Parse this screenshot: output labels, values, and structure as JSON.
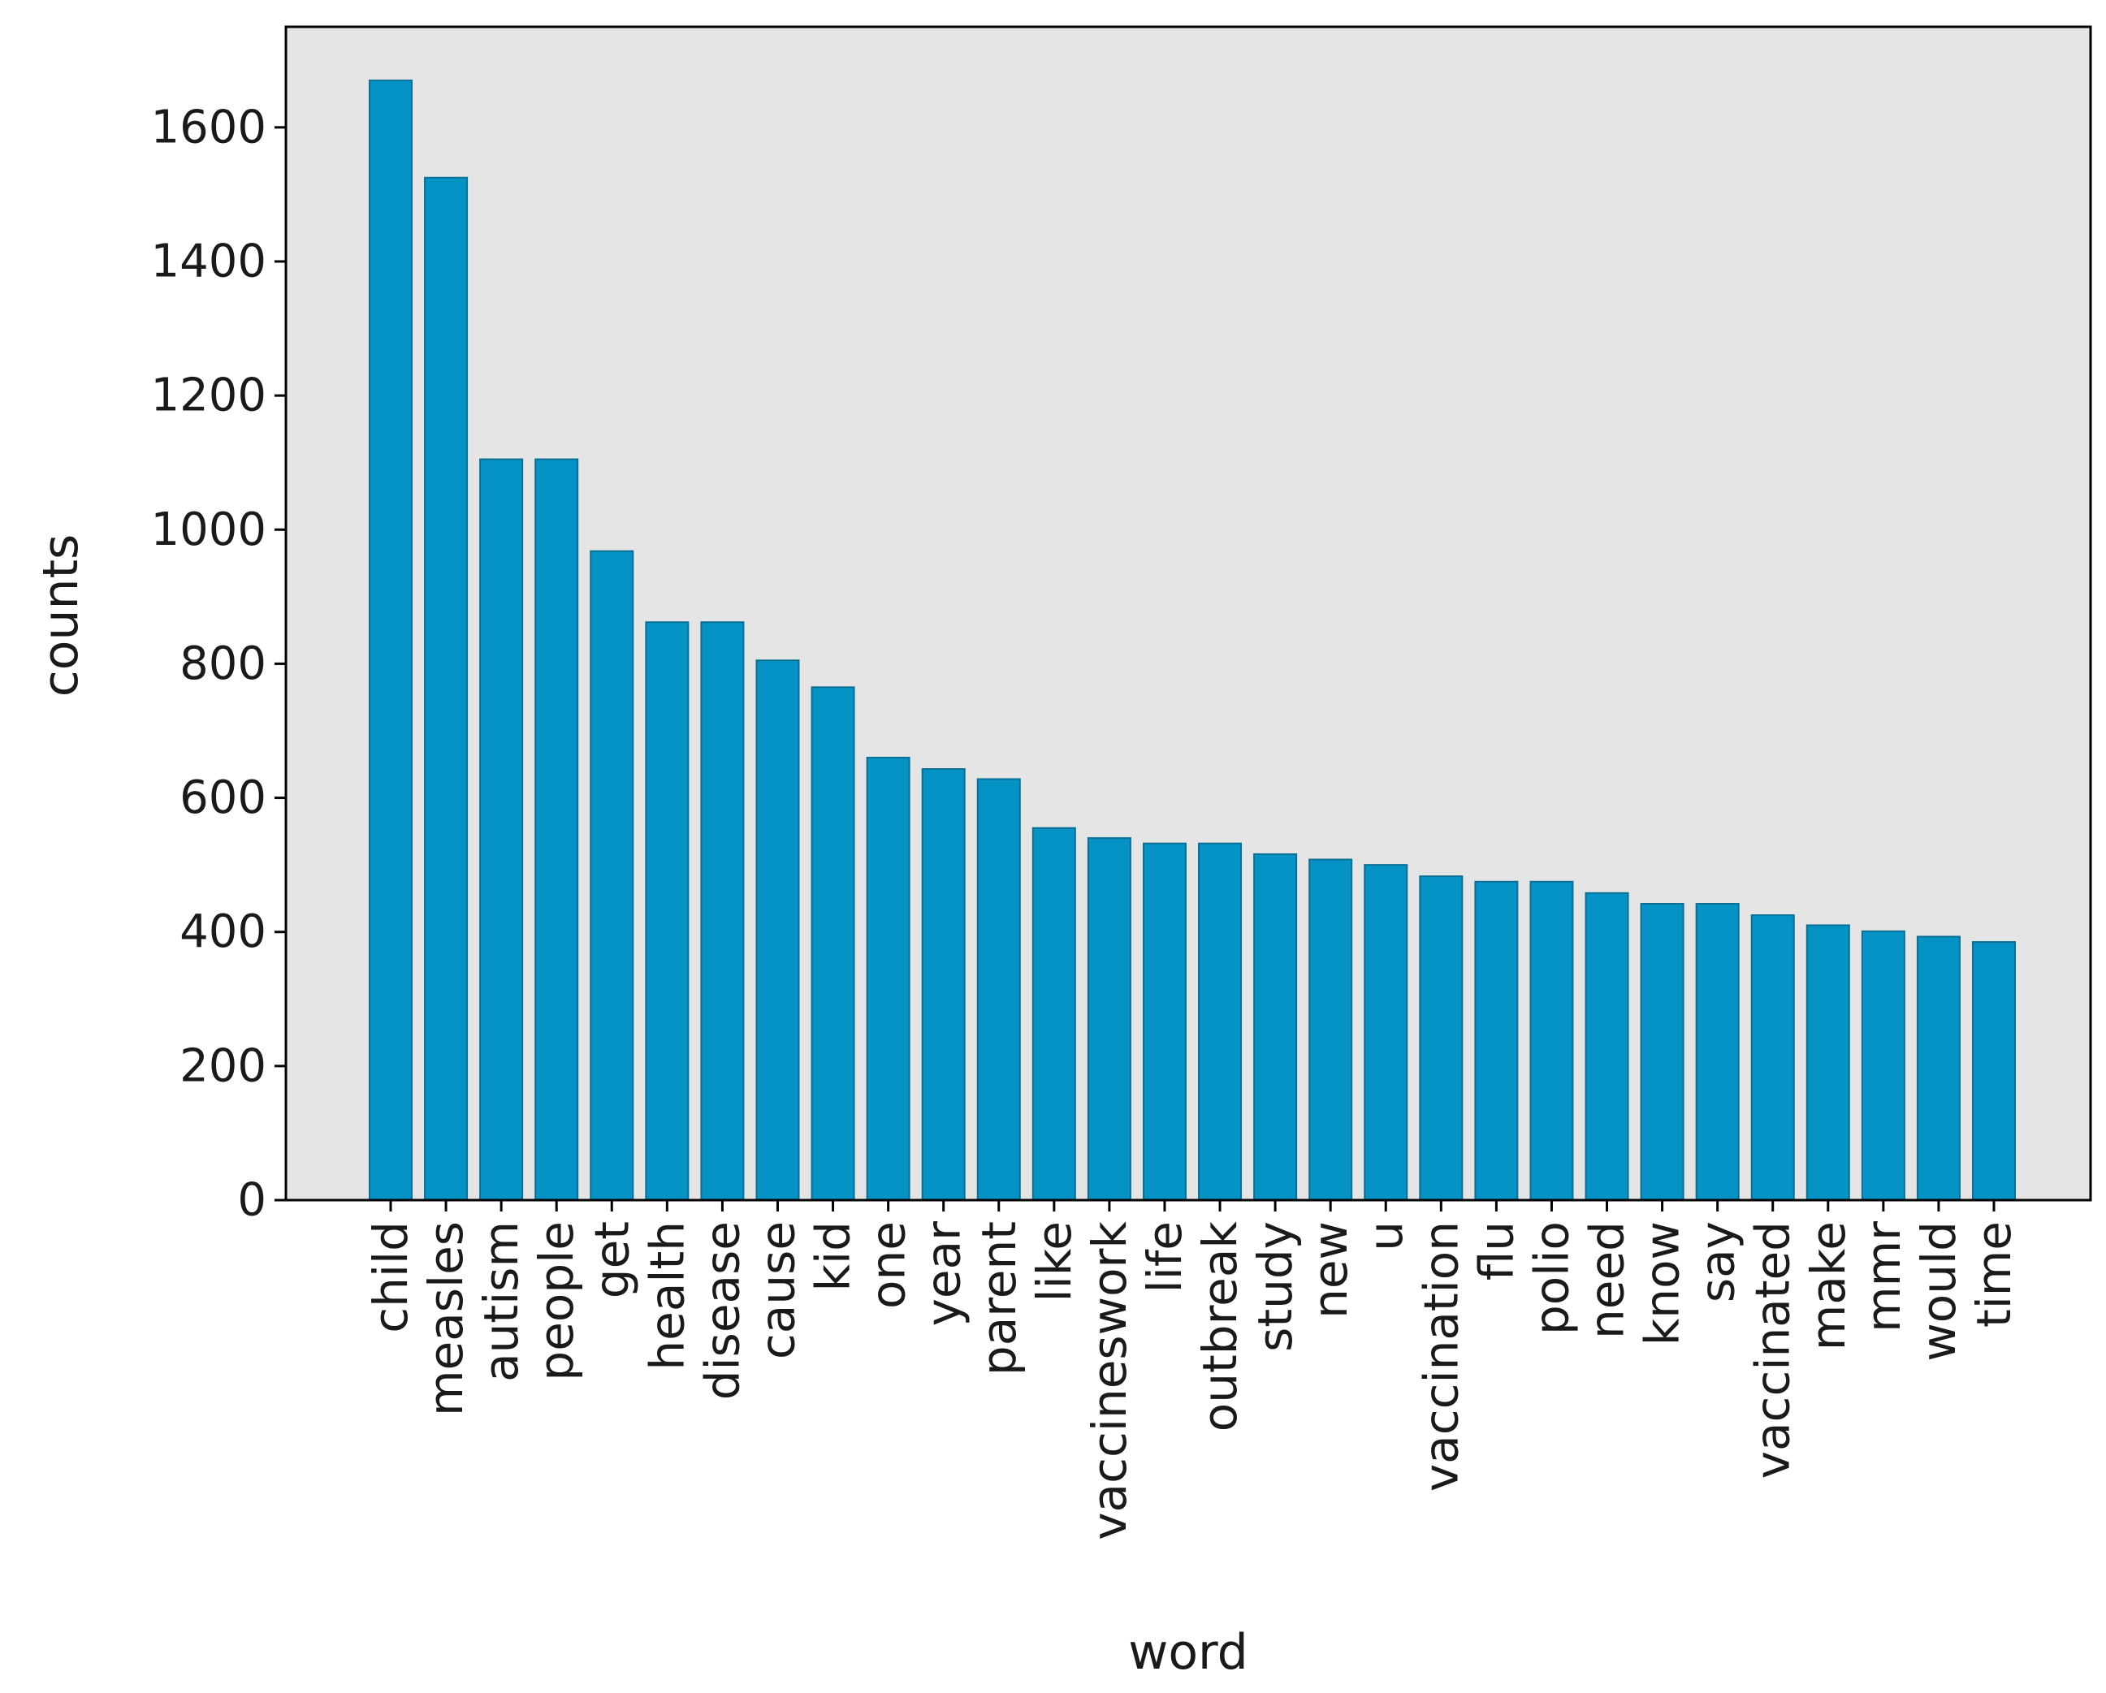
{
  "chart_data": {
    "type": "bar",
    "title": "",
    "xlabel": "word",
    "ylabel": "counts",
    "ylim": [
      0,
      1750
    ],
    "yticks": [
      0,
      200,
      400,
      600,
      800,
      1000,
      1200,
      1400,
      1600
    ],
    "grid": false,
    "legend": "none",
    "colors": {
      "bar_fill": "#0493c4",
      "bar_edge": "#0a6f95",
      "plot_background": "#e5e5e5",
      "axes_frame": "#000000",
      "text": "#1a1a1a"
    },
    "categories": [
      "child",
      "measles",
      "autism",
      "people",
      "get",
      "health",
      "disease",
      "cause",
      "kid",
      "one",
      "year",
      "parent",
      "like",
      "vaccineswork",
      "life",
      "outbreak",
      "study",
      "new",
      "u",
      "vaccination",
      "flu",
      "polio",
      "need",
      "know",
      "say",
      "vaccinated",
      "make",
      "mmr",
      "would",
      "time"
    ],
    "values": [
      1670,
      1525,
      1105,
      1105,
      968,
      862,
      862,
      805,
      765,
      660,
      643,
      628,
      555,
      540,
      532,
      532,
      516,
      508,
      500,
      483,
      475,
      475,
      458,
      442,
      442,
      425,
      410,
      401,
      393,
      385
    ]
  }
}
